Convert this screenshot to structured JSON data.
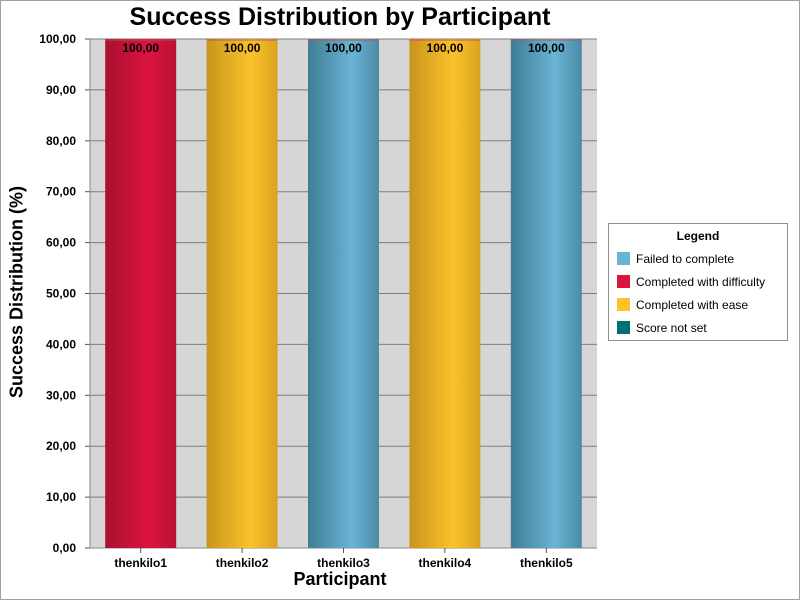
{
  "chart_data": {
    "type": "bar",
    "title": "Success Distribution by Participant",
    "xlabel": "Participant",
    "ylabel": "Success Distribution (%)",
    "categories": [
      "thenkilo1",
      "thenkilo2",
      "thenkilo3",
      "thenkilo4",
      "thenkilo5"
    ],
    "series": [
      {
        "name": "Failed to complete",
        "color": "#6ab4d4",
        "values": [
          0,
          0,
          100,
          0,
          100
        ]
      },
      {
        "name": "Completed with difficulty",
        "color": "#dc1440",
        "values": [
          100,
          0,
          0,
          0,
          0
        ]
      },
      {
        "name": "Completed with ease",
        "color": "#fcc22a",
        "values": [
          0,
          100,
          0,
          100,
          0
        ]
      },
      {
        "name": "Score not set",
        "color": "#007070",
        "values": [
          0,
          0,
          0,
          0,
          0
        ]
      }
    ],
    "data_labels": [
      "100,00",
      "100,00",
      "100,00",
      "100,00",
      "100,00"
    ],
    "ylim": [
      0,
      100
    ],
    "yticks": [
      "0,00",
      "10,00",
      "20,00",
      "30,00",
      "40,00",
      "50,00",
      "60,00",
      "70,00",
      "80,00",
      "90,00",
      "100,00"
    ],
    "grid": true,
    "stacked": true,
    "legend": {
      "title": "Legend",
      "position": "right"
    }
  }
}
